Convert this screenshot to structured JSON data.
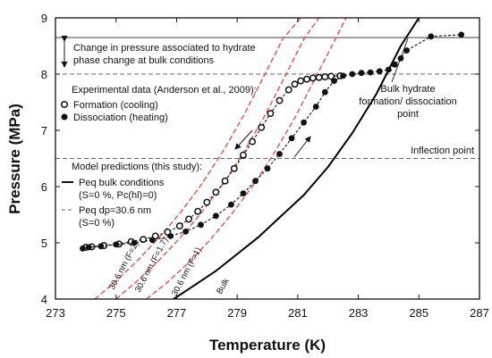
{
  "chart_data": {
    "type": "scatter",
    "xlabel": "Temperature (K)",
    "ylabel": "Pressure (MPa)",
    "xlim": [
      273,
      287
    ],
    "ylim": [
      4,
      9
    ],
    "x_ticks": [
      "273",
      "275",
      "277",
      "279",
      "281",
      "283",
      "285",
      "287"
    ],
    "y_ticks": [
      "4",
      "5",
      "6",
      "7",
      "8",
      "9"
    ],
    "grid": false,
    "reference_lines": [
      {
        "name": "bulk_change_line",
        "y": 8.65,
        "style": "solid",
        "color": "#555555"
      },
      {
        "name": "phase_change_dashed",
        "y": 8.0,
        "style": "dashed",
        "color": "#666666"
      },
      {
        "name": "inflection",
        "y": 6.5,
        "style": "dashed",
        "color": "#666666"
      }
    ],
    "annotations": {
      "change_line1": "Change in pressure associated to hydrate",
      "change_line2": "phase change at bulk conditions",
      "exp_header": "Experimental data (Anderson et al., 2009):",
      "formation": "Formation (cooling)",
      "dissociation": "Dissociation (heating)",
      "bulk_hydrate_line1": "Bulk hydrate",
      "bulk_hydrate_line2": "formation/ dissociation",
      "bulk_hydrate_line3": "point",
      "inflection": "Inflection point",
      "model_header": "Model predictions (this study):",
      "peq_bulk": "Peq bulk  conditions",
      "peq_bulk_sub": "(S=0 %,  Pc(hl)=0)",
      "peq_dp": "Peq dp=30.6 nm",
      "peq_dp_sub": "(S=0 %)",
      "label_f2": "30.6 nm (F=2)",
      "label_f17": "30.6 nm (F=1.7)",
      "label_f1": "30.6 nm (F=1)",
      "label_bulk": "Bulk"
    },
    "series": [
      {
        "name": "Formation (cooling)",
        "marker": "open-circle",
        "x": [
          274.0,
          274.2,
          274.6,
          275.1,
          275.5,
          275.9,
          276.3,
          276.7,
          277.1,
          277.4,
          277.7,
          278.0,
          278.3,
          278.6,
          278.9,
          279.2,
          279.5,
          279.8,
          280.1,
          280.4,
          280.7,
          280.9,
          281.1,
          281.3,
          281.5,
          281.7,
          281.9,
          282.1,
          282.4
        ],
        "y": [
          4.92,
          4.93,
          4.95,
          4.98,
          5.02,
          5.06,
          5.12,
          5.19,
          5.3,
          5.42,
          5.56,
          5.72,
          5.9,
          6.1,
          6.32,
          6.56,
          6.8,
          7.05,
          7.3,
          7.53,
          7.72,
          7.82,
          7.88,
          7.91,
          7.93,
          7.94,
          7.95,
          7.96,
          7.97
        ]
      },
      {
        "name": "Dissociation (heating)",
        "marker": "filled-circle",
        "x": [
          273.9,
          274.1,
          274.5,
          275.0,
          275.6,
          276.2,
          276.8,
          277.3,
          277.8,
          278.3,
          278.8,
          279.2,
          279.6,
          280.0,
          280.4,
          280.8,
          281.2,
          281.6,
          281.9,
          282.2,
          282.5,
          282.8,
          283.1,
          283.4,
          283.7,
          284.0,
          284.2,
          284.4,
          284.6,
          285.4,
          286.4
        ],
        "y": [
          4.9,
          4.92,
          4.94,
          4.97,
          5.0,
          5.05,
          5.12,
          5.2,
          5.32,
          5.48,
          5.68,
          5.88,
          6.1,
          6.32,
          6.58,
          6.86,
          7.14,
          7.42,
          7.68,
          7.88,
          7.97,
          8.0,
          8.02,
          8.03,
          8.05,
          8.08,
          8.17,
          8.28,
          8.42,
          8.67,
          8.7
        ]
      },
      {
        "name": "Peq bulk  conditions",
        "style": "solid",
        "x": [
          276.9,
          277.6,
          278.3,
          279.0,
          279.7,
          280.4,
          281.2,
          282.0,
          282.8,
          283.6,
          284.4,
          285.0
        ],
        "y": [
          4.0,
          4.25,
          4.5,
          4.8,
          5.1,
          5.45,
          5.85,
          6.35,
          6.95,
          7.65,
          8.5,
          9.0
        ]
      },
      {
        "name": "30.6 nm (F=2)",
        "style": "dashed",
        "x": [
          274.3,
          275.0,
          275.7,
          276.4,
          277.1,
          277.8,
          278.5,
          279.2,
          279.9,
          280.5,
          281.1
        ],
        "y": [
          4.0,
          4.32,
          4.68,
          5.08,
          5.52,
          6.02,
          6.6,
          7.25,
          7.98,
          8.62,
          9.0
        ]
      },
      {
        "name": "30.6 nm (F=1.7)",
        "style": "dashed",
        "x": [
          275.0,
          275.7,
          276.4,
          277.1,
          277.8,
          278.5,
          279.2,
          279.9,
          280.6,
          281.2,
          281.7
        ],
        "y": [
          4.0,
          4.32,
          4.68,
          5.08,
          5.52,
          6.02,
          6.6,
          7.25,
          7.98,
          8.62,
          9.0
        ]
      },
      {
        "name": "30.6 nm (F=1)",
        "style": "dashed",
        "x": [
          276.0,
          276.7,
          277.4,
          278.1,
          278.8,
          279.5,
          280.2,
          280.9,
          281.6,
          282.2,
          282.6
        ],
        "y": [
          4.0,
          4.3,
          4.65,
          5.05,
          5.5,
          6.0,
          6.58,
          7.22,
          7.95,
          8.58,
          9.0
        ]
      }
    ],
    "colors": {
      "model_dp": "#ee4e45",
      "bulk": "#000000",
      "markers": "#111111",
      "reference": "#555555"
    }
  }
}
